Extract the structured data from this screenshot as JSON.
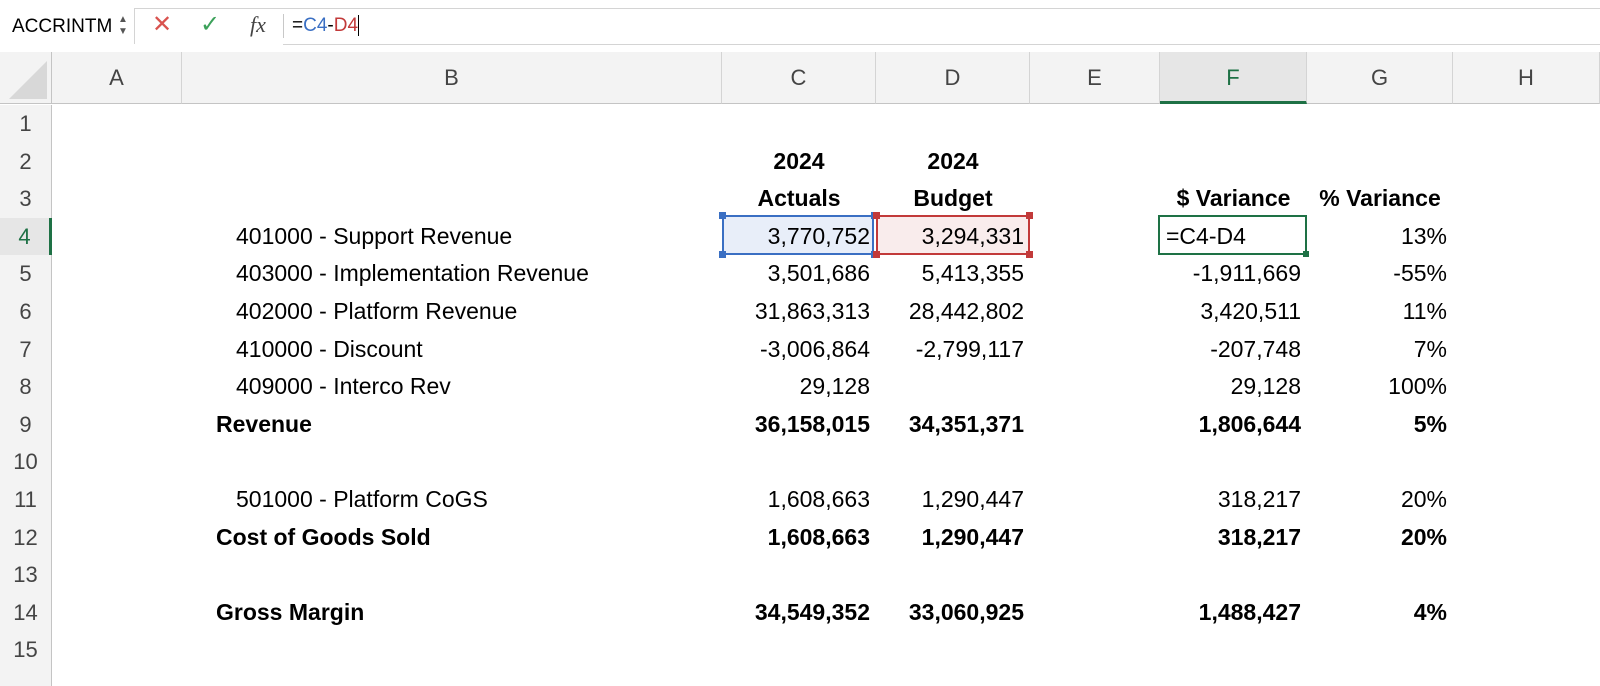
{
  "formula_bar": {
    "name_box": "ACCRINTM",
    "cancel_icon": "✕",
    "enter_icon": "✓",
    "fx_label": "fx",
    "formula_prefix": "=",
    "formula_ref1": "C4",
    "formula_op": "-",
    "formula_ref2": "D4"
  },
  "columns": [
    "A",
    "B",
    "C",
    "D",
    "E",
    "F",
    "G",
    "H"
  ],
  "rows": [
    "1",
    "2",
    "3",
    "4",
    "5",
    "6",
    "7",
    "8",
    "9",
    "10",
    "11",
    "12",
    "13",
    "14",
    "15"
  ],
  "headers": {
    "c2": "2024",
    "d2": "2024",
    "c3": "Actuals",
    "d3": "Budget",
    "f3": "$ Variance",
    "g3": "% Variance"
  },
  "lines": [
    {
      "label": "401000 - Support Revenue",
      "actual": "3,770,752",
      "budget": "3,294,331",
      "variance": "=C4-D4",
      "pct": "13%"
    },
    {
      "label": "403000 - Implementation Revenue",
      "actual": "3,501,686",
      "budget": "5,413,355",
      "variance": "-1,911,669",
      "pct": "-55%"
    },
    {
      "label": "402000 - Platform Revenue",
      "actual": "31,863,313",
      "budget": "28,442,802",
      "variance": "3,420,511",
      "pct": "11%"
    },
    {
      "label": "410000 - Discount",
      "actual": "-3,006,864",
      "budget": "-2,799,117",
      "variance": "-207,748",
      "pct": "7%"
    },
    {
      "label": "409000 - Interco Rev",
      "actual": "29,128",
      "budget": "",
      "variance": "29,128",
      "pct": "100%"
    },
    {
      "label": "Revenue",
      "actual": "36,158,015",
      "budget": "34,351,371",
      "variance": "1,806,644",
      "pct": "5%"
    },
    {
      "label": "501000 - Platform CoGS",
      "actual": "1,608,663",
      "budget": "1,290,447",
      "variance": "318,217",
      "pct": "20%"
    },
    {
      "label": "Cost of Goods Sold",
      "actual": "1,608,663",
      "budget": "1,290,447",
      "variance": "318,217",
      "pct": "20%"
    },
    {
      "label": "Gross Margin",
      "actual": "34,549,352",
      "budget": "33,060,925",
      "variance": "1,488,427",
      "pct": "4%"
    }
  ],
  "colors": {
    "ref1": "#3a6fc3",
    "ref2": "#c23a3a",
    "active": "#1e7145"
  }
}
